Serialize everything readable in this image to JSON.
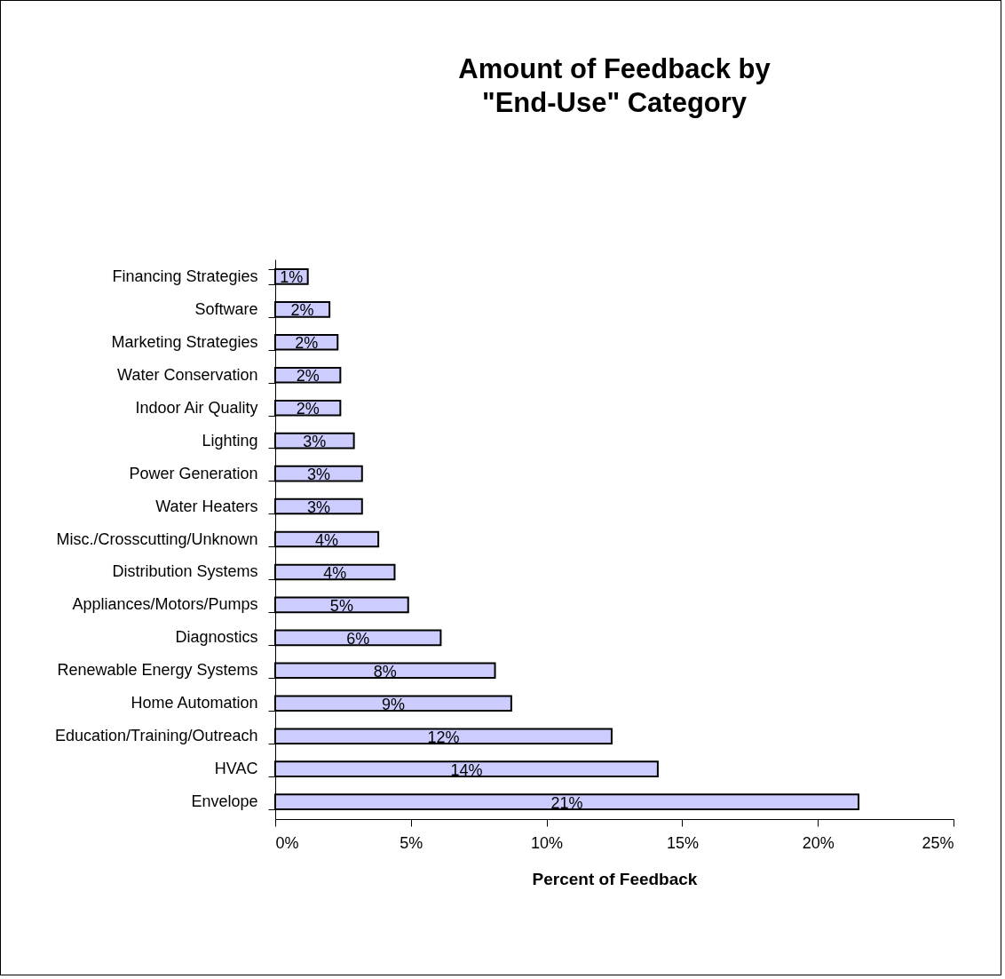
{
  "chart_data": {
    "type": "bar",
    "orientation": "horizontal",
    "title": "Amount of Feedback by\n\"End-Use\" Category",
    "xlabel": "Percent of Feedback",
    "categories": [
      "Financing Strategies",
      "Software",
      "Marketing Strategies",
      "Water Conservation",
      "Indoor Air Quality",
      "Lighting",
      "Power Generation",
      "Water Heaters",
      "Misc./Crosscutting/Unknown",
      "Distribution Systems",
      "Appliances/Motors/Pumps",
      "Diagnostics",
      "Renewable Energy Systems",
      "Home Automation",
      "Education/Training/Outreach",
      "HVAC",
      "Envelope"
    ],
    "values": [
      1.2,
      2.0,
      2.3,
      2.4,
      2.4,
      2.9,
      3.2,
      3.2,
      3.8,
      4.4,
      4.9,
      6.1,
      8.1,
      8.7,
      12.4,
      14.1,
      21.5
    ],
    "value_labels": [
      "1%",
      "2%",
      "2%",
      "2%",
      "2%",
      "3%",
      "3%",
      "3%",
      "4%",
      "4%",
      "5%",
      "6%",
      "8%",
      "9%",
      "12%",
      "14%",
      "21%"
    ],
    "color": "#ccccff",
    "xlim": [
      0,
      25
    ],
    "xticks": [
      {
        "value": 0,
        "label": "0%"
      },
      {
        "value": 5,
        "label": "5%"
      },
      {
        "value": 10,
        "label": "10%"
      },
      {
        "value": 15,
        "label": "15%"
      },
      {
        "value": 20,
        "label": "20%"
      },
      {
        "value": 25,
        "label": "25%"
      }
    ],
    "grid": false
  }
}
